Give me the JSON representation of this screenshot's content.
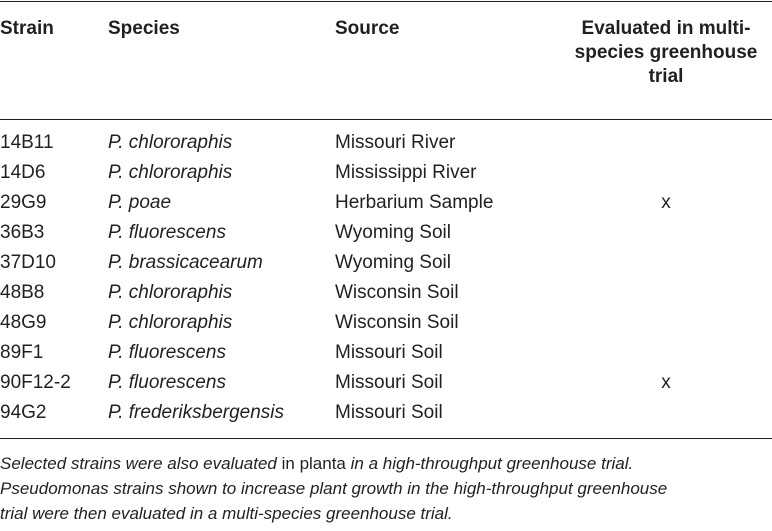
{
  "header": {
    "strain": "Strain",
    "species": "Species",
    "source": "Source",
    "evaluated_lines": [
      "Evaluated in multi-",
      "species greenhouse",
      "trial"
    ]
  },
  "rows": [
    {
      "strain": "14B11",
      "species": "P. chlororaphis",
      "source": "Missouri River",
      "evaluated": ""
    },
    {
      "strain": "14D6",
      "species": "P. chlororaphis",
      "source": "Mississippi River",
      "evaluated": ""
    },
    {
      "strain": "29G9",
      "species": "P. poae",
      "source": "Herbarium Sample",
      "evaluated": "x"
    },
    {
      "strain": "36B3",
      "species": "P. fluorescens",
      "source": "Wyoming Soil",
      "evaluated": ""
    },
    {
      "strain": "37D10",
      "species": "P. brassicacearum",
      "source": "Wyoming Soil",
      "evaluated": ""
    },
    {
      "strain": "48B8",
      "species": "P. chlororaphis",
      "source": "Wisconsin Soil",
      "evaluated": ""
    },
    {
      "strain": "48G9",
      "species": "P. chlororaphis",
      "source": "Wisconsin Soil",
      "evaluated": ""
    },
    {
      "strain": "89F1",
      "species": "P. fluorescens",
      "source": "Missouri Soil",
      "evaluated": ""
    },
    {
      "strain": "90F12-2",
      "species": "P. fluorescens",
      "source": "Missouri Soil",
      "evaluated": "x"
    },
    {
      "strain": "94G2",
      "species": "P. frederiksbergensis",
      "source": "Missouri Soil",
      "evaluated": ""
    }
  ],
  "footnote": {
    "line1_a": "Selected strains were also evaluated",
    "line1_b": " in planta ",
    "line1_c": "in a high-throughput greenhouse trial.",
    "line2": "Pseudomonas strains shown to increase plant growth in the high-throughput greenhouse",
    "line3": "trial were then evaluated in a multi-species greenhouse trial."
  }
}
